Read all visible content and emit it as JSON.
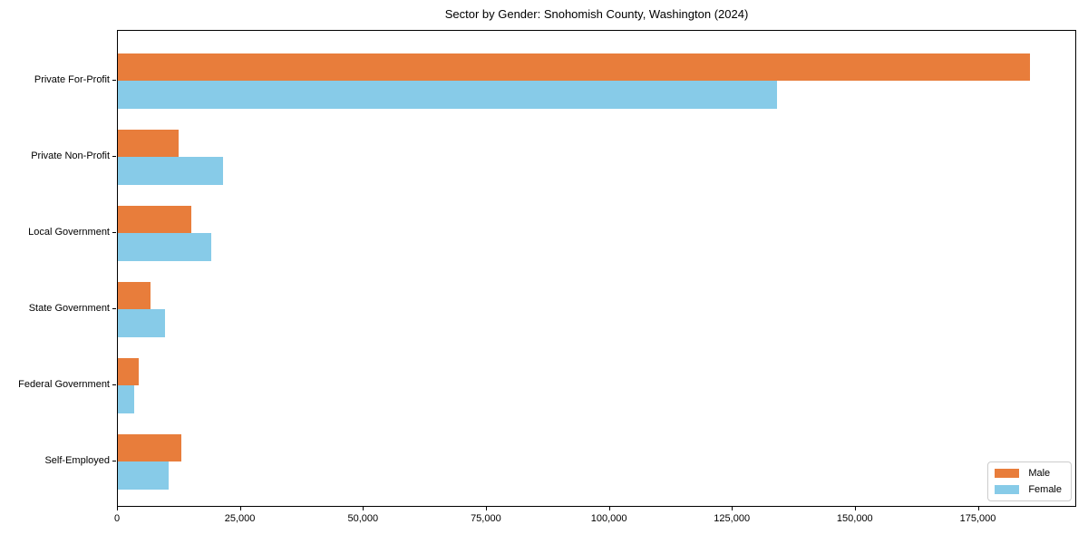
{
  "chart_data": {
    "type": "bar",
    "orientation": "horizontal",
    "title": "Sector by Gender: Snohomish County, Washington (2024)",
    "categories": [
      "Private For-Profit",
      "Private Non-Profit",
      "Local Government",
      "State Government",
      "Federal Government",
      "Self-Employed"
    ],
    "series": [
      {
        "name": "Male",
        "color": "#e87d3b",
        "values": [
          185400,
          12300,
          15000,
          6600,
          4200,
          12900
        ]
      },
      {
        "name": "Female",
        "color": "#87cbe8",
        "values": [
          133900,
          21300,
          19000,
          9600,
          3400,
          10400
        ]
      }
    ],
    "xlabel": "",
    "ylabel": "",
    "xlim": [
      0,
      195000
    ],
    "x_ticks": [
      0,
      25000,
      50000,
      75000,
      100000,
      125000,
      150000,
      175000
    ],
    "x_tick_labels": [
      "0",
      "25,000",
      "50,000",
      "75,000",
      "100,000",
      "125,000",
      "150,000",
      "175,000"
    ],
    "grid": false,
    "legend_position": "lower right",
    "axis_color": "#000000",
    "background_color": "#ffffff"
  }
}
